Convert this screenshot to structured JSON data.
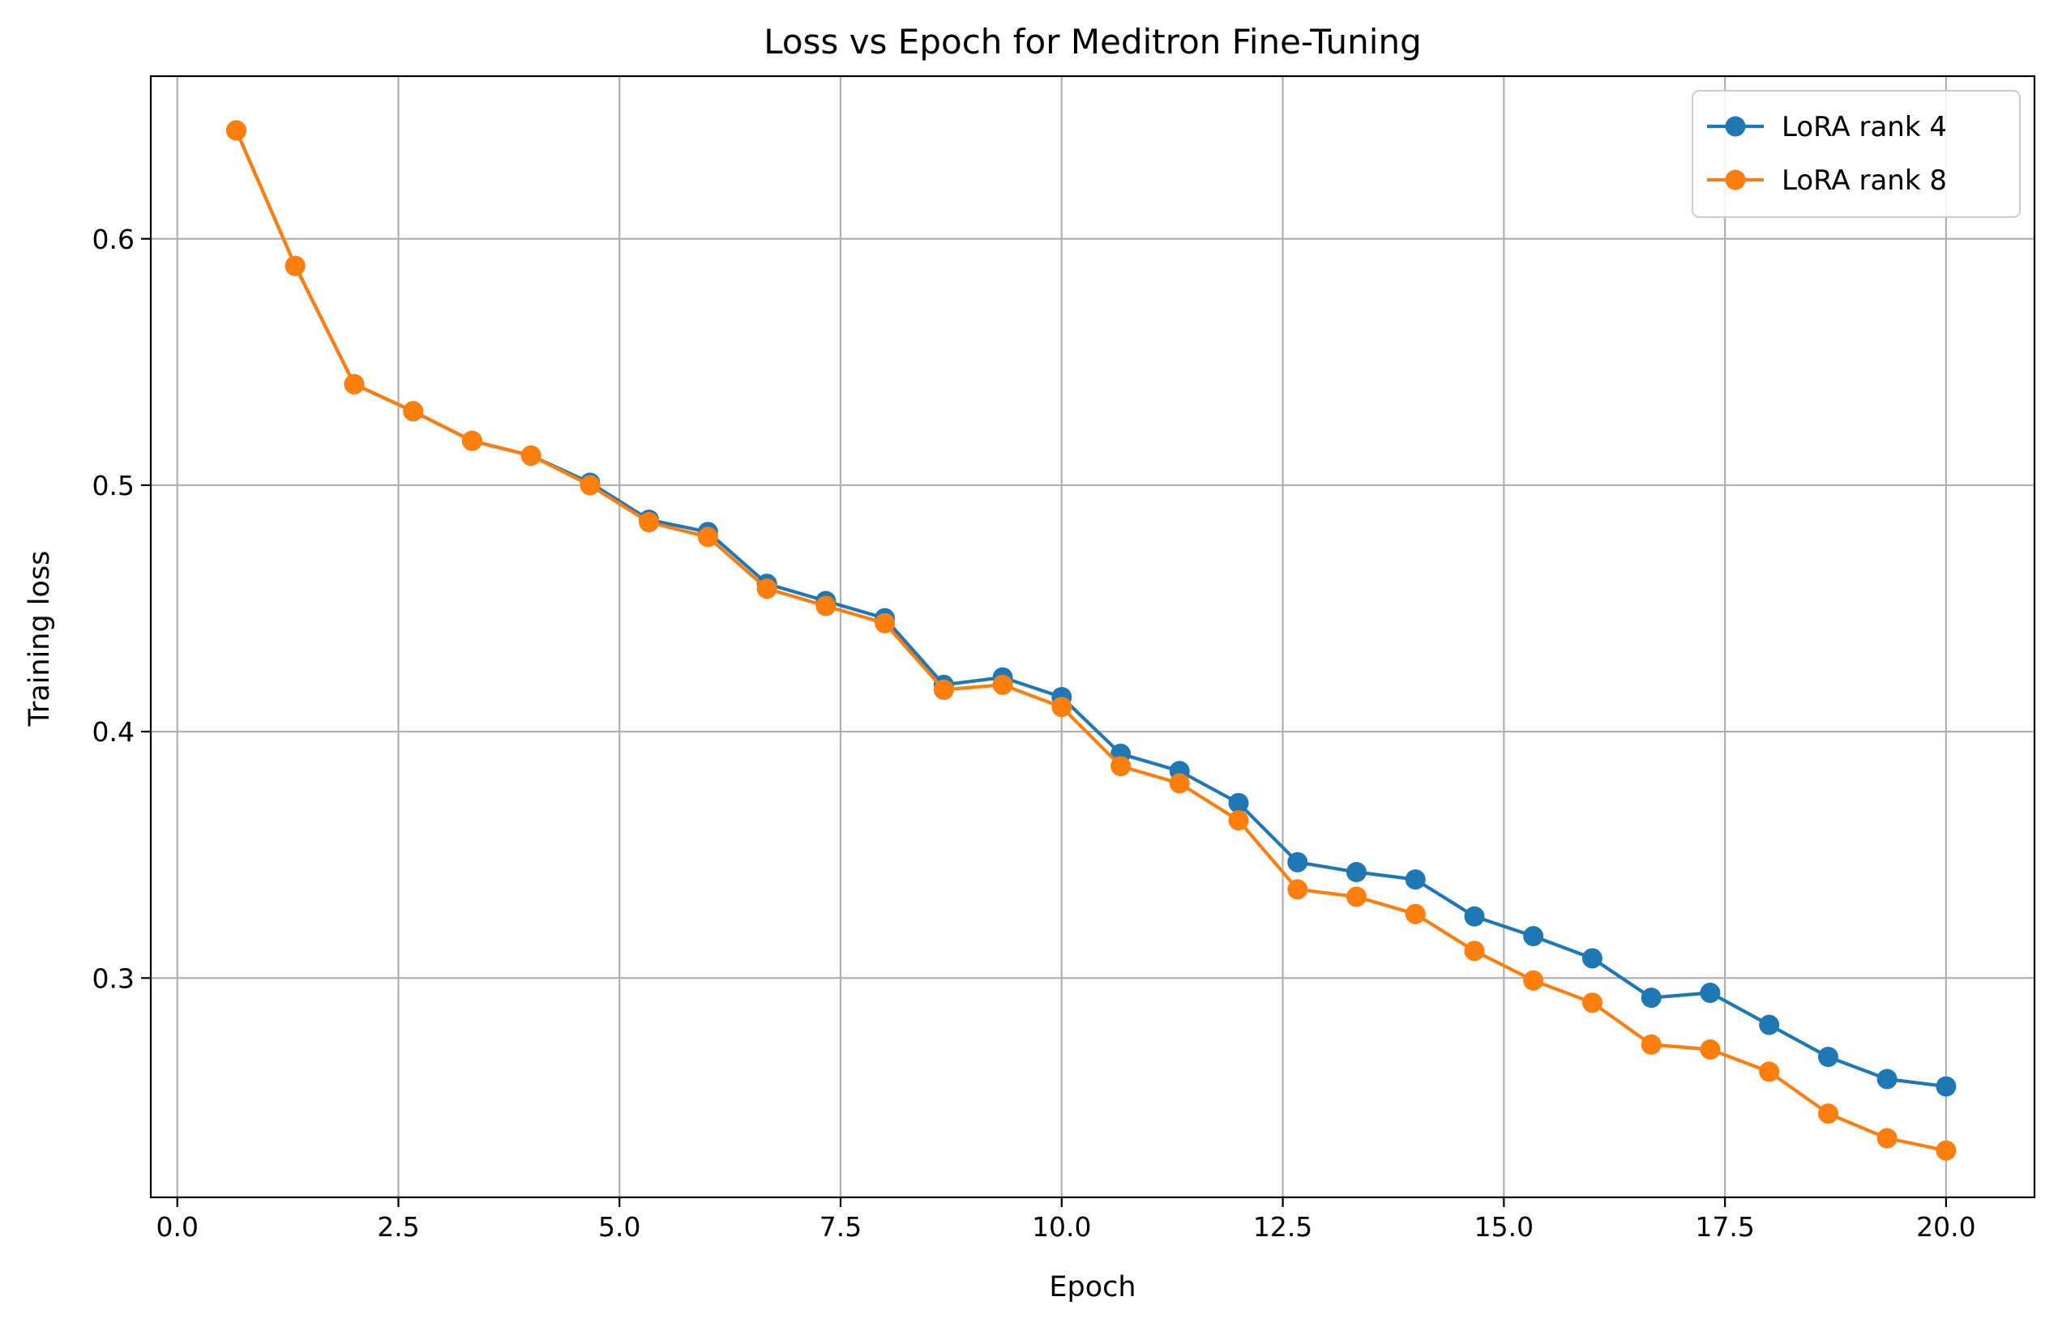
{
  "chart_data": {
    "type": "line",
    "title": "Loss vs Epoch for Meditron Fine-Tuning",
    "xlabel": "Epoch",
    "ylabel": "Training loss",
    "xlim": [
      -0.3,
      21.0
    ],
    "ylim": [
      0.211,
      0.666
    ],
    "xticks": [
      0.0,
      2.5,
      5.0,
      7.5,
      10.0,
      12.5,
      15.0,
      17.5,
      20.0
    ],
    "xtick_labels": [
      "0.0",
      "2.5",
      "5.0",
      "7.5",
      "10.0",
      "12.5",
      "15.0",
      "17.5",
      "20.0"
    ],
    "yticks": [
      0.3,
      0.4,
      0.5,
      0.6
    ],
    "ytick_labels": [
      "0.3",
      "0.4",
      "0.5",
      "0.6"
    ],
    "grid": true,
    "legend_position": "top-right",
    "x": [
      0.667,
      1.333,
      2.0,
      2.667,
      3.333,
      4.0,
      4.667,
      5.333,
      6.0,
      6.667,
      7.333,
      8.0,
      8.667,
      9.333,
      10.0,
      10.667,
      11.333,
      12.0,
      12.667,
      13.333,
      14.0,
      14.667,
      15.333,
      16.0,
      16.667,
      17.333,
      18.0,
      18.667,
      19.333,
      20.0
    ],
    "series": [
      {
        "name": "LoRA rank 4",
        "color": "#1f77b4",
        "values": [
          0.644,
          0.589,
          0.541,
          0.53,
          0.518,
          0.512,
          0.501,
          0.486,
          0.481,
          0.46,
          0.453,
          0.446,
          0.419,
          0.422,
          0.414,
          0.391,
          0.384,
          0.371,
          0.347,
          0.343,
          0.34,
          0.325,
          0.317,
          0.308,
          0.292,
          0.294,
          0.281,
          0.268,
          0.259,
          0.256
        ]
      },
      {
        "name": "LoRA rank 8",
        "color": "#ff7f0e",
        "values": [
          0.644,
          0.589,
          0.541,
          0.53,
          0.518,
          0.512,
          0.5,
          0.485,
          0.479,
          0.458,
          0.451,
          0.444,
          0.417,
          0.419,
          0.41,
          0.386,
          0.379,
          0.364,
          0.336,
          0.333,
          0.326,
          0.311,
          0.299,
          0.29,
          0.273,
          0.271,
          0.262,
          0.245,
          0.235,
          0.23
        ]
      }
    ]
  }
}
